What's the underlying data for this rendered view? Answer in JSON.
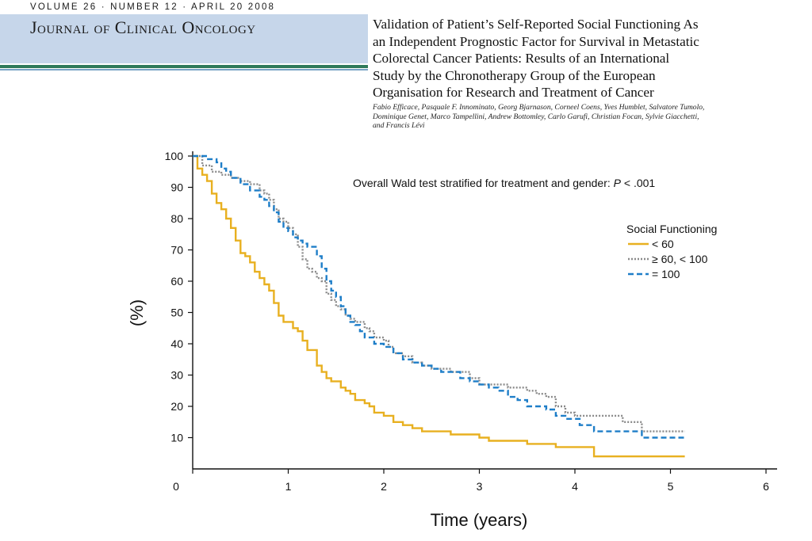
{
  "header": {
    "issue_line": "VOLUME 26 · NUMBER 12 · APRIL 20 2008",
    "journal_name": "Journal of Clinical Oncology",
    "band_color": "#c6d6ea"
  },
  "article": {
    "title_lines": [
      "Validation of Patient’s Self-Reported Social Functioning As",
      "an Independent Prognostic Factor for Survival in Metastatic",
      "Colorectal Cancer Patients: Results of an International",
      "Study by the Chronotherapy Group of the European",
      "Organisation for Research and Treatment of Cancer"
    ],
    "author_lines": [
      "Fabio Efficace, Pasquale F. Innominato, Georg Bjarnason, Corneel Coens, Yves Humblet, Salvatore Tumolo,",
      "Dominique Genet, Marco Tampellini, Andrew Bottomley, Carlo Garufi, Christian Focan, Sylvie Giacchetti,",
      "and Francis Lévi"
    ]
  },
  "chart_data": {
    "type": "line",
    "step": true,
    "xlabel": "Time (years)",
    "ylabel": "(%)",
    "xlim": [
      0,
      6
    ],
    "ylim": [
      0,
      100
    ],
    "xticks": [
      0,
      1,
      2,
      3,
      4,
      5,
      6
    ],
    "yticks": [
      10,
      20,
      30,
      40,
      50,
      60,
      70,
      80,
      90,
      100
    ],
    "origin_label": "0",
    "grid": false,
    "annotation": {
      "prefix": "Overall Wald test stratified for treatment and gender: ",
      "p_symbol": "P",
      "suffix": " < .001"
    },
    "legend": {
      "title": "Social Functioning",
      "position": "right"
    },
    "series": [
      {
        "name": "< 60",
        "color": "#e8b020",
        "dash": "solid",
        "x": [
          0,
          0.05,
          0.1,
          0.15,
          0.2,
          0.25,
          0.3,
          0.35,
          0.4,
          0.45,
          0.5,
          0.55,
          0.6,
          0.65,
          0.7,
          0.75,
          0.8,
          0.85,
          0.9,
          0.95,
          1.0,
          1.05,
          1.1,
          1.15,
          1.2,
          1.3,
          1.35,
          1.4,
          1.45,
          1.5,
          1.55,
          1.6,
          1.65,
          1.7,
          1.8,
          1.85,
          1.9,
          2.0,
          2.1,
          2.2,
          2.3,
          2.4,
          2.5,
          2.6,
          2.7,
          2.8,
          3.0,
          3.1,
          3.2,
          3.3,
          3.5,
          3.8,
          4.0,
          4.2,
          4.5,
          5.15
        ],
        "y": [
          100,
          96,
          94,
          92,
          88,
          85,
          83,
          80,
          77,
          73,
          69,
          68,
          66,
          63,
          61,
          59,
          57,
          53,
          49,
          47,
          47,
          45,
          44,
          41,
          38,
          33,
          31,
          29,
          28,
          28,
          26,
          25,
          24,
          22,
          21,
          20,
          18,
          17,
          15,
          14,
          13,
          12,
          12,
          12,
          11,
          11,
          10,
          9,
          9,
          9,
          8,
          7,
          7,
          4,
          4,
          4
        ]
      },
      {
        "name": "≥ 60, < 100",
        "color": "#8a8a8a",
        "dash": "dotted",
        "x": [
          0,
          0.1,
          0.2,
          0.3,
          0.4,
          0.5,
          0.6,
          0.7,
          0.75,
          0.8,
          0.85,
          0.9,
          0.95,
          1.0,
          1.05,
          1.1,
          1.15,
          1.2,
          1.25,
          1.3,
          1.35,
          1.4,
          1.45,
          1.5,
          1.55,
          1.6,
          1.65,
          1.7,
          1.8,
          1.85,
          1.9,
          2.0,
          2.05,
          2.1,
          2.2,
          2.3,
          2.4,
          2.5,
          2.7,
          2.9,
          3.0,
          3.2,
          3.3,
          3.5,
          3.6,
          3.7,
          3.8,
          3.9,
          4.0,
          4.5,
          4.7,
          5.15
        ],
        "y": [
          100,
          97,
          95,
          94,
          93,
          92,
          91,
          89,
          88,
          86,
          83,
          80,
          79,
          77,
          75,
          71,
          67,
          64,
          63,
          61,
          60,
          56,
          54,
          52,
          51,
          49,
          48,
          47,
          45,
          44,
          42,
          41,
          39,
          37,
          36,
          34,
          33,
          32,
          31,
          29,
          27,
          27,
          26,
          25,
          24,
          23,
          20,
          18,
          17,
          15,
          12,
          12
        ]
      },
      {
        "name": "= 100",
        "color": "#1e7ec8",
        "dash": "dashed",
        "x": [
          0,
          0.15,
          0.25,
          0.3,
          0.35,
          0.4,
          0.5,
          0.6,
          0.7,
          0.75,
          0.8,
          0.85,
          0.9,
          0.95,
          1.0,
          1.05,
          1.1,
          1.15,
          1.2,
          1.3,
          1.35,
          1.4,
          1.45,
          1.5,
          1.55,
          1.6,
          1.65,
          1.7,
          1.75,
          1.8,
          1.9,
          2.0,
          2.1,
          2.2,
          2.3,
          2.4,
          2.5,
          2.6,
          2.8,
          2.9,
          3.0,
          3.1,
          3.2,
          3.3,
          3.4,
          3.5,
          3.6,
          3.7,
          3.8,
          3.9,
          4.0,
          4.05,
          4.2,
          4.4,
          4.7,
          5.15
        ],
        "y": [
          100,
          99,
          98,
          96,
          95,
          93,
          91,
          89,
          87,
          86,
          84,
          82,
          79,
          77,
          76,
          74,
          73,
          72,
          71,
          68,
          64,
          60,
          57,
          55,
          52,
          49,
          47,
          46,
          44,
          42,
          40,
          39,
          37,
          35,
          34,
          33,
          32,
          31,
          29,
          28,
          27,
          26,
          25,
          23,
          22,
          20,
          20,
          19,
          17,
          16,
          16,
          14,
          12,
          12,
          10,
          10
        ]
      }
    ]
  }
}
